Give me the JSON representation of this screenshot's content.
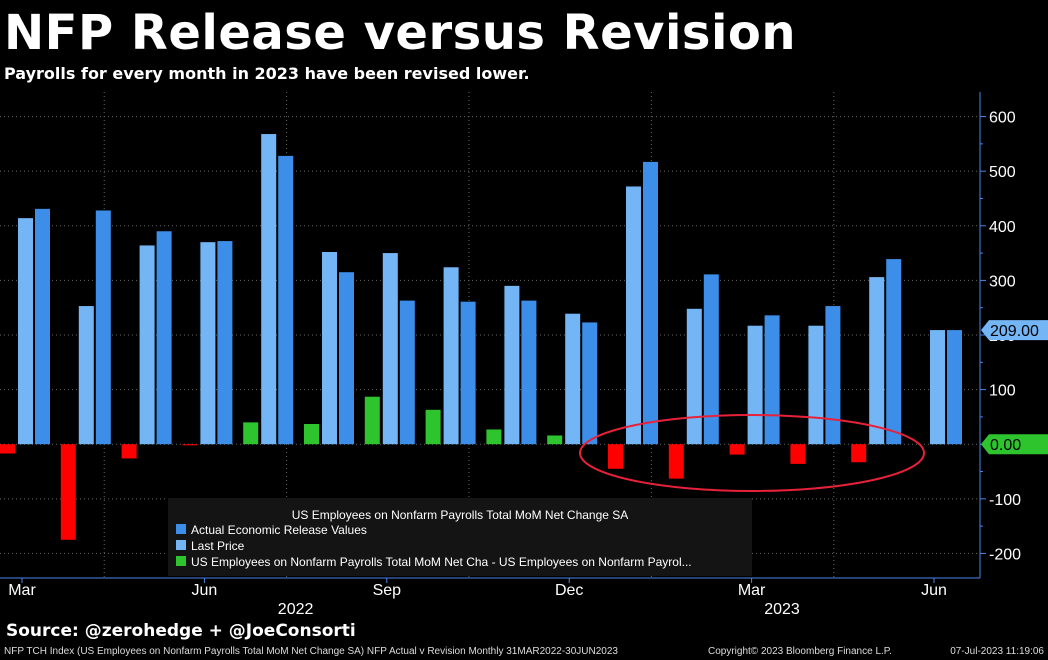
{
  "title": "NFP Release versus Revision",
  "subtitle": "Payrolls for every month in 2023 have been revised lower.",
  "source": "Source: @zerohedge + @JoeConsorti",
  "footer": {
    "left": "NFP TCH Index (US Employees on Nonfarm Payrolls Total MoM Net Change SA) NFP Actual v Revision  Monthly 31MAR2022-30JUN2023",
    "copyright": "Copyright© 2023 Bloomberg Finance L.P.",
    "date": "07-Jul-2023 11:19:06"
  },
  "chart_data": {
    "type": "bar",
    "categories": [
      "Mar 2022",
      "Apr 2022",
      "May 2022",
      "Jun 2022",
      "Jul 2022",
      "Aug 2022",
      "Sep 2022",
      "Oct 2022",
      "Nov 2022",
      "Dec 2022",
      "Jan 2023",
      "Feb 2023",
      "Mar 2023",
      "Apr 2023",
      "May 2023",
      "Jun 2023"
    ],
    "series": [
      {
        "name": "Actual Economic Release Values",
        "color": "#3d8ee8",
        "values": [
          431,
          428,
          390,
          372,
          528,
          315,
          263,
          261,
          263,
          223,
          517,
          311,
          236,
          253,
          339,
          209
        ]
      },
      {
        "name": "Last Price",
        "color": "#74b6f5",
        "values": [
          414,
          253,
          364,
          370,
          568,
          352,
          350,
          324,
          290,
          239,
          472,
          248,
          217,
          217,
          306,
          209
        ]
      },
      {
        "name": "US Employees on Nonfarm Payrolls Total MoM Net Cha - US Employees on Nonfarm Payrol...",
        "color": "#2ec42e",
        "negative_color": "#ff0000",
        "values": [
          -17,
          -175,
          -26,
          -2,
          40,
          37,
          87,
          63,
          27,
          16,
          -45,
          -63,
          -19,
          -36,
          -33,
          0
        ]
      }
    ],
    "legend_title": "US Employees on Nonfarm Payrolls Total MoM Net Change SA",
    "legend_labels": [
      "Actual Economic Release Values",
      "Last Price",
      "US Employees on Nonfarm Payrolls Total MoM Net Cha - US Employees on Nonfarm Payrol..."
    ],
    "legend_position": "bottom-center",
    "yticks": [
      600,
      500,
      400,
      300,
      200,
      100,
      0,
      -100,
      -200
    ],
    "ytick_labels": [
      "600",
      "500",
      "400",
      "300",
      "200",
      "100",
      "0",
      "-100",
      "-200"
    ],
    "ylim": [
      -245,
      645
    ],
    "month_labels": [
      {
        "label": "Mar",
        "index": 0
      },
      {
        "label": "Jun",
        "index": 3
      },
      {
        "label": "Sep",
        "index": 6
      },
      {
        "label": "Dec",
        "index": 9
      },
      {
        "label": "Mar",
        "index": 12
      },
      {
        "label": "Jun",
        "index": 15
      }
    ],
    "year_labels": [
      {
        "label": "2022",
        "index": 4.5
      },
      {
        "label": "2023",
        "index": 12.5
      }
    ],
    "last_value_tags": [
      {
        "label": "209.00",
        "value": 209,
        "color": "#74b6f5"
      },
      {
        "label": "0.00",
        "value": 0,
        "color": "#2ec42e"
      }
    ],
    "grid": true,
    "annotation": "red ellipse around 2023 revisions"
  }
}
